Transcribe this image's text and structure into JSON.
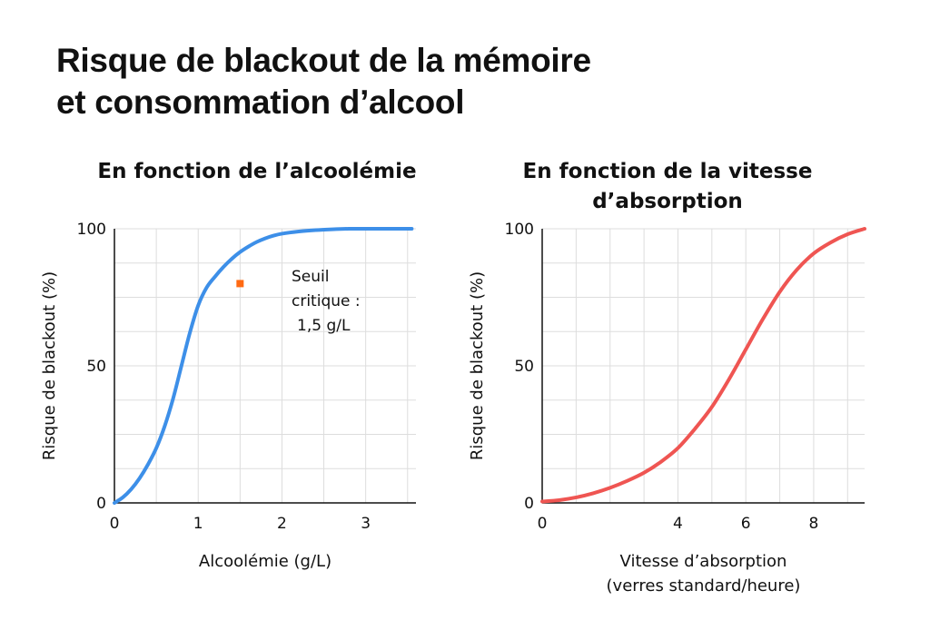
{
  "page": {
    "title_line1": "Risque de blackout de la mémoire",
    "title_line2": "et consommation d’alcool"
  },
  "chart_data": [
    {
      "type": "line",
      "title": "En fonction de l’alcoolémie",
      "xlabel": "Alcoolémie (g/L)",
      "ylabel": "Risque de blackout (%)",
      "xlim": [
        0,
        3.6
      ],
      "ylim": [
        0,
        100
      ],
      "xticks": [
        0,
        1,
        2,
        3
      ],
      "xtick_labels": [
        "0",
        "1",
        "2",
        "3"
      ],
      "yticks": [
        0,
        50,
        100
      ],
      "ytick_labels": [
        "0",
        "50",
        "100"
      ],
      "grid": true,
      "color": "#3d8fe8",
      "series": [
        {
          "x": [
            0,
            0.1,
            0.2,
            0.3,
            0.4,
            0.5,
            0.6,
            0.7,
            0.8,
            0.9,
            1.0,
            1.1,
            1.2,
            1.3,
            1.4,
            1.5,
            1.6,
            1.7,
            1.8,
            1.9,
            2.0,
            2.2,
            2.4,
            2.6,
            2.8,
            3.0,
            3.2,
            3.55
          ],
          "values": [
            0,
            2,
            5,
            9,
            14,
            20,
            28,
            38,
            50,
            62,
            72,
            78.5,
            82.5,
            86,
            89,
            91.5,
            93.5,
            95.2,
            96.5,
            97.5,
            98.2,
            99,
            99.5,
            99.8,
            100,
            100,
            100,
            100
          ]
        }
      ],
      "annotation": {
        "x": 1.5,
        "y": 80,
        "marker_color": "#ff6a13",
        "label_lines": [
          "Seuil",
          "critique :",
          "1,5 g/L"
        ]
      }
    },
    {
      "type": "line",
      "title_lines": [
        "En fonction de la vitesse",
        "d’absorption"
      ],
      "xlabel_lines": [
        "Vitesse d’absorption",
        "(verres standard/heure)"
      ],
      "ylabel": "Risque de blackout (%)",
      "xlim": [
        0,
        9.5
      ],
      "ylim": [
        0,
        100
      ],
      "xticks": [
        0,
        4,
        6,
        8
      ],
      "xtick_labels": [
        "0",
        "4",
        "6",
        "8"
      ],
      "yticks": [
        0,
        50,
        100
      ],
      "ytick_labels": [
        "0",
        "50",
        "100"
      ],
      "grid": true,
      "color": "#ef5552",
      "series": [
        {
          "x": [
            0,
            0.5,
            1,
            1.5,
            2,
            2.5,
            3,
            3.5,
            4,
            4.5,
            5,
            5.5,
            6,
            6.5,
            7,
            7.5,
            8,
            8.5,
            9,
            9.5
          ],
          "values": [
            0.5,
            1,
            2,
            3.5,
            5.5,
            8,
            11,
            15,
            20,
            27,
            35,
            45,
            56,
            67,
            77,
            85,
            91,
            95,
            98,
            100
          ]
        }
      ]
    }
  ]
}
